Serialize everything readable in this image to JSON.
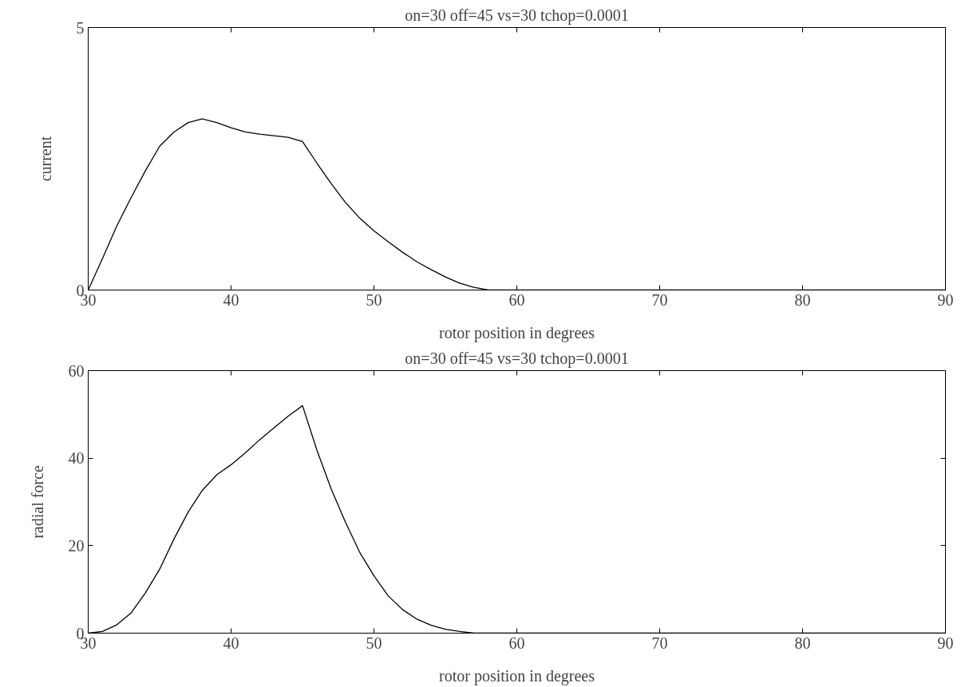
{
  "chart_data": [
    {
      "type": "line",
      "title": "on=30 off=45 vs=30 tchop=0.0001",
      "xlabel": "rotor position in degrees",
      "ylabel": "current",
      "xlim": [
        30,
        90
      ],
      "ylim": [
        0,
        5
      ],
      "xticks": [
        30,
        40,
        50,
        60,
        70,
        80,
        90
      ],
      "yticks": [
        0,
        5
      ],
      "grid": false,
      "x": [
        30,
        31,
        32,
        33,
        34,
        35,
        36,
        37,
        38,
        39,
        40,
        41,
        42,
        43,
        44,
        45,
        46,
        47,
        48,
        49,
        50,
        51,
        52,
        53,
        54,
        55,
        56,
        57,
        58,
        90
      ],
      "series": [
        {
          "color": "#000000",
          "values": [
            0,
            0.6,
            1.22,
            1.76,
            2.27,
            2.74,
            3.01,
            3.19,
            3.26,
            3.19,
            3.09,
            3.01,
            2.97,
            2.94,
            2.91,
            2.83,
            2.42,
            2.03,
            1.67,
            1.37,
            1.13,
            0.92,
            0.72,
            0.54,
            0.39,
            0.25,
            0.13,
            0.05,
            0,
            0
          ]
        }
      ]
    },
    {
      "type": "line",
      "title": "on=30 off=45 vs=30 tchop=0.0001",
      "xlabel": "rotor position in degrees",
      "ylabel": "radial force",
      "xlim": [
        30,
        90
      ],
      "ylim": [
        0,
        60
      ],
      "xticks": [
        30,
        40,
        50,
        60,
        70,
        80,
        90
      ],
      "yticks": [
        0,
        20,
        40,
        60
      ],
      "grid": false,
      "x": [
        30,
        31,
        32,
        33,
        34,
        35,
        36,
        37,
        38,
        39,
        40,
        41,
        42,
        43,
        44,
        45,
        46,
        47,
        48,
        49,
        50,
        51,
        52,
        53,
        54,
        55,
        56,
        57,
        90
      ],
      "series": [
        {
          "color": "#000000",
          "values": [
            0,
            0.4,
            1.9,
            4.6,
            9.2,
            14.6,
            21.5,
            27.7,
            32.7,
            36.2,
            38.5,
            41.2,
            44.2,
            46.9,
            49.6,
            52,
            41.9,
            33,
            25.4,
            18.5,
            13.1,
            8.5,
            5.4,
            3.2,
            1.8,
            0.9,
            0.4,
            0,
            0
          ]
        }
      ]
    }
  ]
}
